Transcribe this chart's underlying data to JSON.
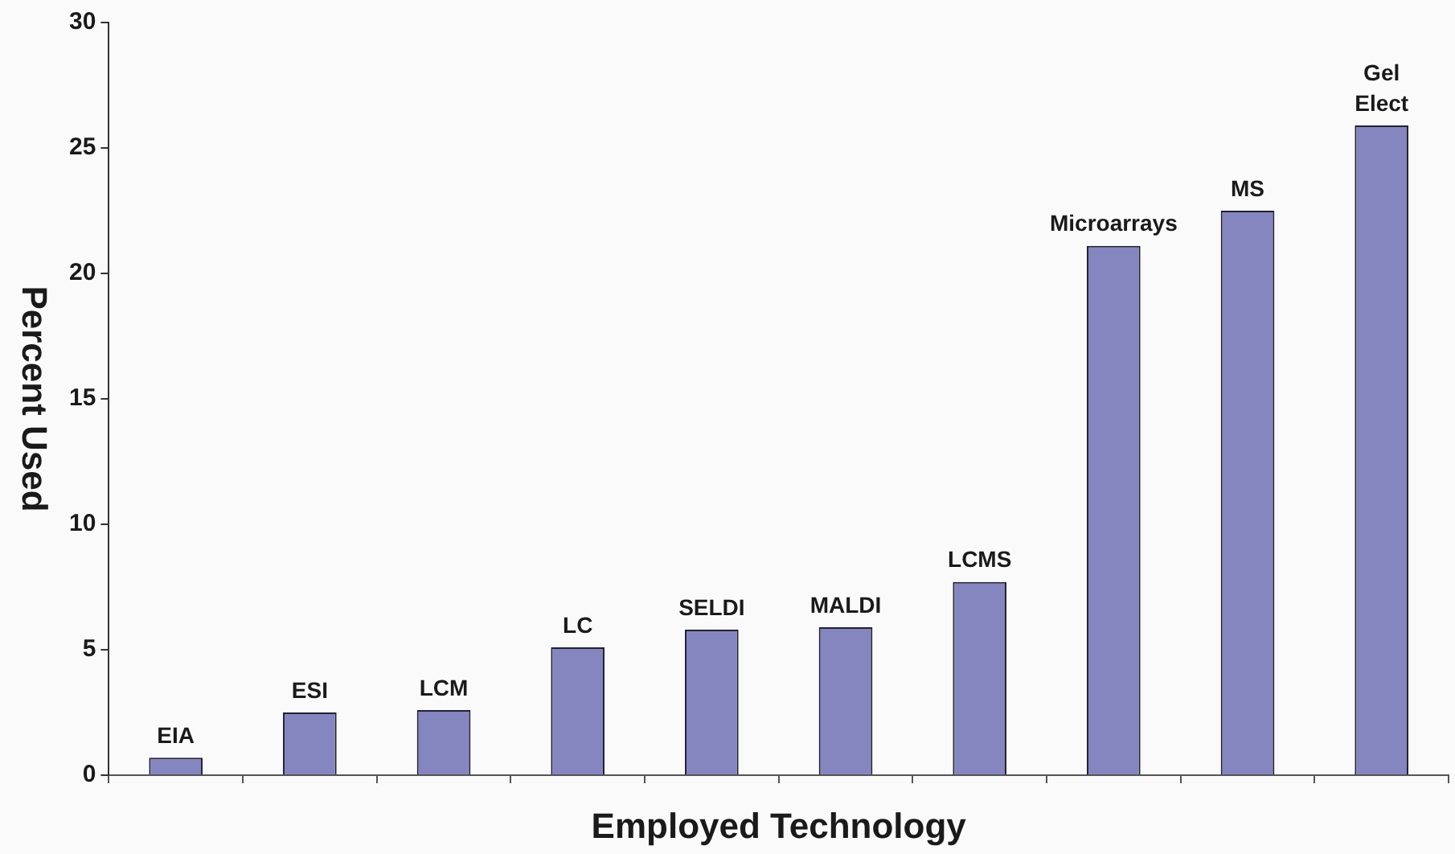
{
  "chart_data": {
    "type": "bar",
    "xlabel": "Employed Technology",
    "ylabel": "Percent Used",
    "categories": [
      "EIA",
      "ESI",
      "LCM",
      "LC",
      "SELDI",
      "MALDI",
      "LCMS",
      "Microarrays",
      "MS",
      "Gel Elect"
    ],
    "values": [
      0.7,
      2.5,
      2.6,
      5.1,
      5.8,
      5.9,
      7.7,
      21.1,
      22.5,
      25.9
    ],
    "color": "#8585c0",
    "ylim": [
      0,
      30
    ],
    "yticks": [
      0,
      5,
      10,
      15,
      20,
      25,
      30
    ],
    "grid": false,
    "legend": false,
    "tick_labels": "y"
  }
}
